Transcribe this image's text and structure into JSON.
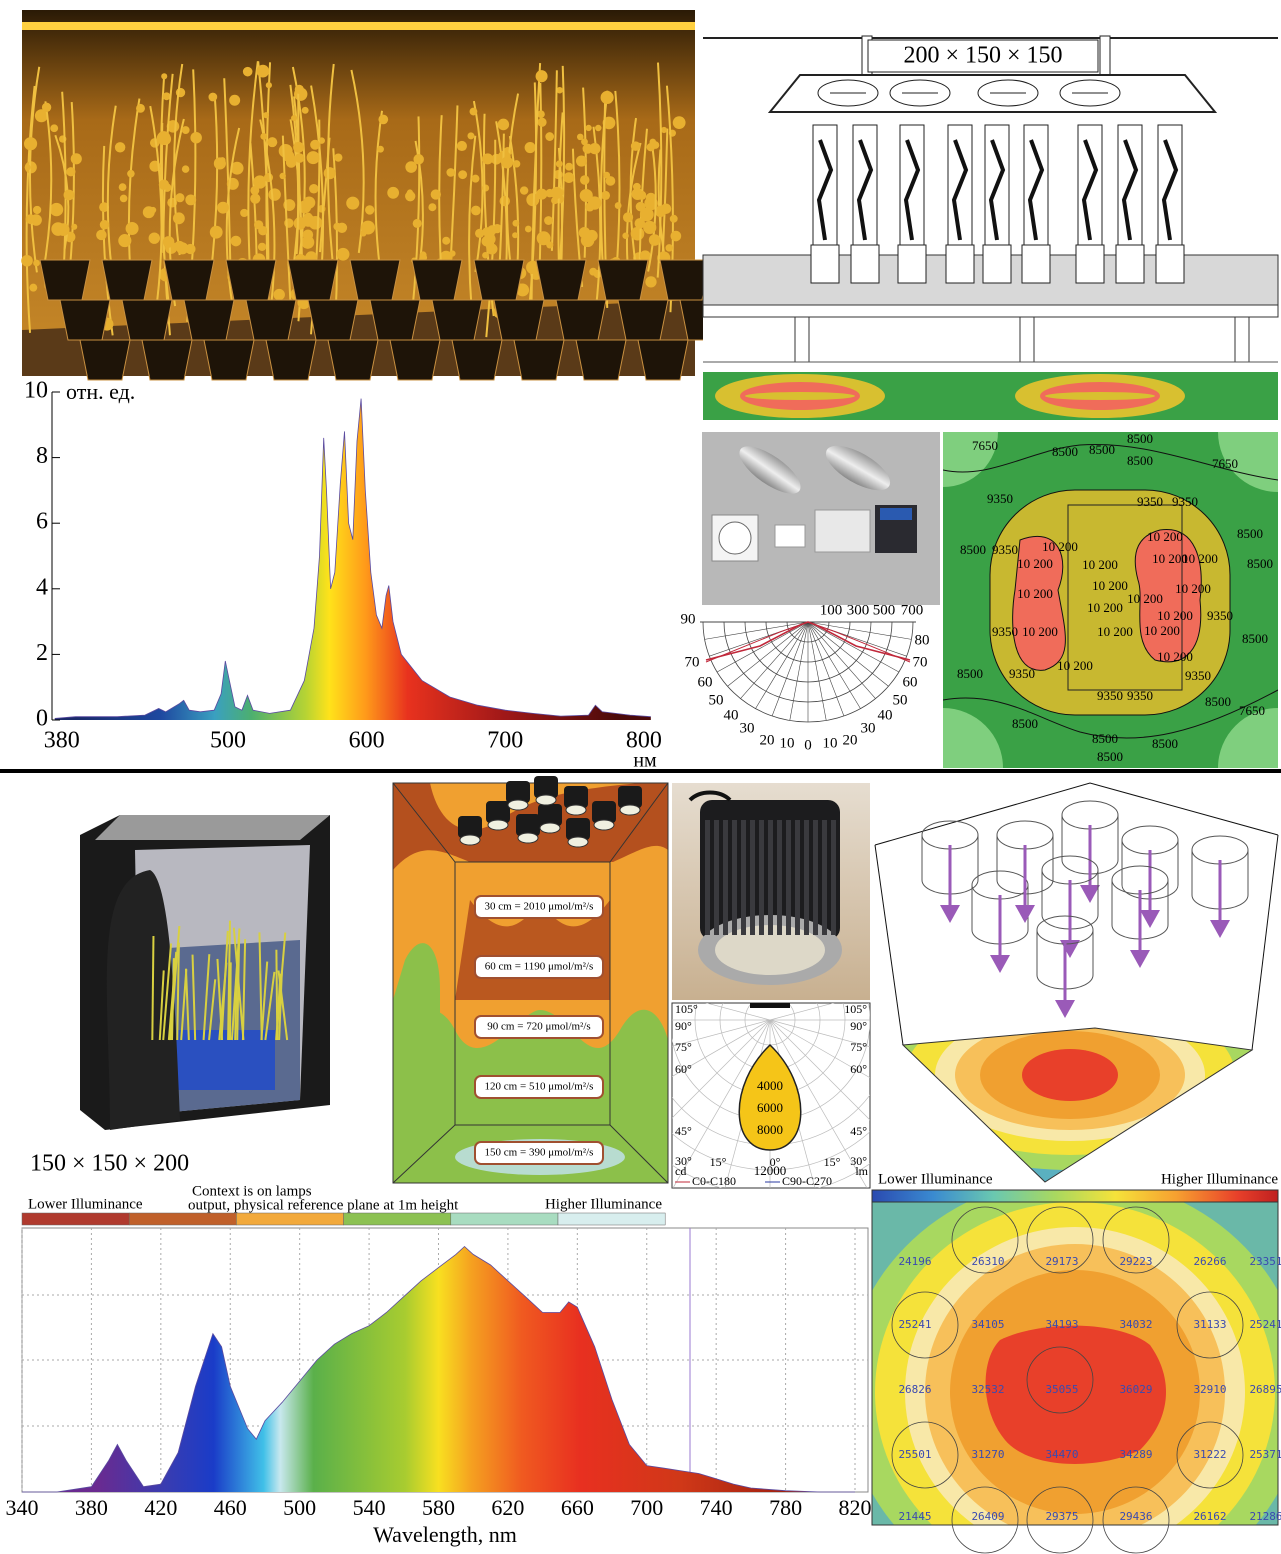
{
  "chart_data": [
    {
      "type": "area",
      "y_label": "отн. ед.",
      "x_label": "нм",
      "x": [
        375,
        390,
        420,
        440,
        450,
        455,
        465,
        468,
        472,
        480,
        490,
        495,
        498,
        501,
        505,
        510,
        514,
        518,
        530,
        545,
        555,
        562,
        566,
        569,
        571,
        574,
        577,
        581,
        584,
        587,
        590,
        593,
        596,
        599,
        603,
        607,
        611,
        614,
        616,
        619,
        625,
        640,
        660,
        680,
        700,
        720,
        740,
        760,
        765,
        770,
        790,
        805
      ],
      "values": [
        0.05,
        0.1,
        0.1,
        0.15,
        0.35,
        0.25,
        0.5,
        0.6,
        0.3,
        0.25,
        0.3,
        0.8,
        1.8,
        1.2,
        0.4,
        0.3,
        0.75,
        0.3,
        0.2,
        0.3,
        1.2,
        2.8,
        5,
        8.6,
        7,
        4,
        4.5,
        7.2,
        8.8,
        6,
        5.5,
        8.5,
        9.8,
        7,
        4.5,
        3.2,
        2.8,
        3.8,
        4.1,
        3,
        2,
        1.2,
        0.7,
        0.45,
        0.3,
        0.2,
        0.12,
        0.15,
        0.45,
        0.25,
        0.15,
        0.1
      ],
      "xlim": [
        373,
        808
      ],
      "xticks": [
        380,
        500,
        600,
        700,
        800
      ],
      "ylim": [
        0,
        10
      ],
      "yticks": [
        0,
        2,
        4,
        6,
        8,
        10
      ],
      "grid": false
    },
    {
      "type": "area",
      "x_label": "Wavelength, nm",
      "x": [
        340,
        360,
        380,
        390,
        395,
        400,
        410,
        420,
        430,
        440,
        450,
        455,
        460,
        470,
        475,
        480,
        490,
        500,
        510,
        520,
        530,
        540,
        550,
        560,
        570,
        580,
        590,
        595,
        600,
        610,
        620,
        630,
        640,
        650,
        655,
        660,
        670,
        680,
        690,
        700,
        710,
        720,
        730,
        740,
        750,
        760,
        780,
        800,
        820
      ],
      "values": [
        0,
        0,
        0.02,
        0.12,
        0.18,
        0.12,
        0.02,
        0.03,
        0.15,
        0.4,
        0.6,
        0.55,
        0.4,
        0.24,
        0.2,
        0.27,
        0.34,
        0.42,
        0.5,
        0.56,
        0.6,
        0.63,
        0.68,
        0.74,
        0.8,
        0.85,
        0.9,
        0.93,
        0.9,
        0.86,
        0.8,
        0.74,
        0.68,
        0.68,
        0.72,
        0.7,
        0.55,
        0.35,
        0.18,
        0.1,
        0.09,
        0.08,
        0.07,
        0.05,
        0.03,
        0.015,
        0.005,
        0,
        0
      ],
      "xlim": [
        340,
        820
      ],
      "xticks": [
        340,
        380,
        420,
        460,
        500,
        540,
        580,
        620,
        660,
        700,
        740,
        780,
        820
      ],
      "ylim": [
        0,
        1
      ],
      "grid": true
    }
  ],
  "schematic": {
    "dimensions": "200 × 150 × 150"
  },
  "polar_plot_hps": {
    "top_labels": [
      "100",
      "300",
      "500",
      "700"
    ],
    "left_labels": [
      "90",
      "70",
      "60",
      "50",
      "40",
      "30",
      "20",
      "10"
    ],
    "center_label": "0",
    "right_labels": [
      "80",
      "70",
      "60",
      "50",
      "40",
      "30",
      "20",
      "10"
    ]
  },
  "isolux_map": {
    "labels": [
      "7650",
      "8500",
      "8500",
      "8500",
      "8500",
      "7650",
      "9350",
      "9350",
      "9350",
      "10 200",
      "10 200",
      "8500",
      "9350",
      "10 200",
      "10 200",
      "10 200",
      "10 200",
      "8500",
      "8500",
      "10 200",
      "10 200",
      "10 200",
      "10 200",
      "10 200",
      "9350",
      "9350",
      "10 200",
      "10 200",
      "10 200",
      "10 200",
      "10 200",
      "8500",
      "10 200",
      "8500",
      "9350",
      "9350",
      "9350",
      "9350",
      "8500",
      "7650",
      "8500",
      "8500",
      "8500",
      "8500"
    ]
  },
  "tent": {
    "dimensions": "150 × 150 × 200"
  },
  "section_diagram": {
    "labels": [
      "30 cm = 2010 μmol/m²/s",
      "60 cm = 1190 μmol/m²/s",
      "90 cm = 720 μmol/m²/s",
      "120 cm = 510 μmol/m²/s",
      "150 cm = 390 μmol/m²/s"
    ]
  },
  "polar_plot_led": {
    "left_labels": [
      "105°",
      "90°",
      "75°",
      "60°",
      "45°",
      "30°"
    ],
    "right_labels": [
      "105°",
      "90°",
      "75°",
      "60°",
      "45°",
      "30°"
    ],
    "bottom_labels": [
      "15°",
      "0°",
      "15°"
    ],
    "intensity_labels": [
      "4000",
      "6000",
      "8000",
      "12000"
    ],
    "unit": "cd",
    "legend": [
      "C0-C180",
      "C90-C270"
    ],
    "corner_label": "lm"
  },
  "illuminance_legend": {
    "lower": "Lower Illuminance",
    "context_line1": "Context is on lamps",
    "context_line2": "output, physical reference plane at 1m height",
    "higher": "Higher Illuminance"
  },
  "heatmap": {
    "lower": "Lower Illuminance",
    "higher": "Higher Illuminance",
    "values": [
      [
        "24196",
        "26310",
        "29173",
        "29223",
        "26266",
        "23351"
      ],
      [
        "25241",
        "34105",
        "34193",
        "34032",
        "31133",
        "25241"
      ],
      [
        "26826",
        "32532",
        "35055",
        "36029",
        "32910",
        "26895"
      ],
      [
        "25501",
        "31270",
        "34470",
        "34289",
        "31222",
        "25371"
      ],
      [
        "21445",
        "26409",
        "29375",
        "29436",
        "26162",
        "21286"
      ]
    ]
  }
}
